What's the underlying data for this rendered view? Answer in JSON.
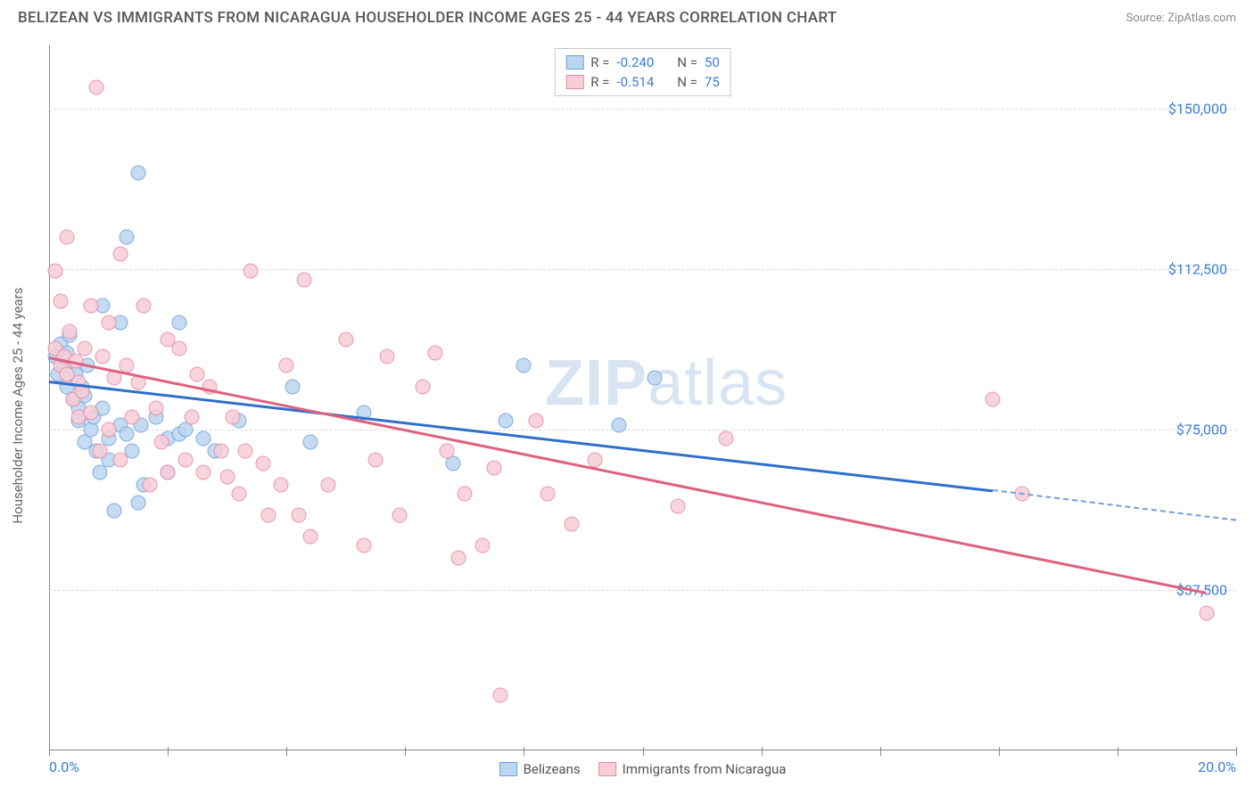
{
  "header": {
    "title": "BELIZEAN VS IMMIGRANTS FROM NICARAGUA HOUSEHOLDER INCOME AGES 25 - 44 YEARS CORRELATION CHART",
    "source": "Source: ZipAtlas.com"
  },
  "watermark": {
    "zip": "ZIP",
    "atlas": "atlas"
  },
  "chart": {
    "type": "scatter",
    "ylabel": "Householder Income Ages 25 - 44 years",
    "xlim": [
      0,
      20
    ],
    "ylim": [
      0,
      165000
    ],
    "yticks": [
      {
        "v": 37500,
        "label": "$37,500"
      },
      {
        "v": 75000,
        "label": "$75,000"
      },
      {
        "v": 112500,
        "label": "$112,500"
      },
      {
        "v": 150000,
        "label": "$150,000"
      }
    ],
    "xticks": [
      0,
      2,
      4,
      6,
      8,
      10,
      12,
      14,
      16,
      18,
      20
    ],
    "xtick_labels": {
      "left": "0.0%",
      "right": "20.0%"
    },
    "grid_color": "#d8d8d8",
    "axis_color": "#888888",
    "background_color": "#ffffff",
    "series": [
      {
        "name": "Belizeans",
        "color_fill": "#bcd5f0",
        "color_stroke": "#6ea0db",
        "marker_size": 17,
        "R": "-0.240",
        "N": "50",
        "trend": {
          "x1": 0,
          "y1": 86500,
          "x2": 15.9,
          "y2": 61000,
          "color": "#2f6fc9"
        },
        "trend_dash": {
          "x1": 15.9,
          "y1": 61000,
          "x2": 20,
          "y2": 54000,
          "color": "#6ea0db"
        },
        "points": [
          [
            0.1,
            92000
          ],
          [
            0.15,
            88000
          ],
          [
            0.2,
            95000
          ],
          [
            0.25,
            90000
          ],
          [
            0.3,
            85000
          ],
          [
            0.3,
            93000
          ],
          [
            0.35,
            97000
          ],
          [
            0.4,
            82000
          ],
          [
            0.45,
            88000
          ],
          [
            0.5,
            80000
          ],
          [
            0.5,
            77000
          ],
          [
            0.55,
            85000
          ],
          [
            0.6,
            83000
          ],
          [
            0.6,
            72000
          ],
          [
            0.65,
            90000
          ],
          [
            0.7,
            75000
          ],
          [
            0.75,
            78000
          ],
          [
            0.8,
            70000
          ],
          [
            0.85,
            65000
          ],
          [
            0.9,
            104000
          ],
          [
            0.9,
            80000
          ],
          [
            1.0,
            73000
          ],
          [
            1.0,
            68000
          ],
          [
            1.2,
            100000
          ],
          [
            1.2,
            76000
          ],
          [
            1.3,
            74000
          ],
          [
            1.3,
            120000
          ],
          [
            1.5,
            135000
          ],
          [
            1.5,
            58000
          ],
          [
            1.55,
            76000
          ],
          [
            1.6,
            62000
          ],
          [
            1.8,
            78000
          ],
          [
            2.0,
            73000
          ],
          [
            2.0,
            65000
          ],
          [
            2.2,
            100000
          ],
          [
            2.2,
            74000
          ],
          [
            2.3,
            75000
          ],
          [
            2.6,
            73000
          ],
          [
            2.8,
            70000
          ],
          [
            3.2,
            77000
          ],
          [
            4.1,
            85000
          ],
          [
            4.4,
            72000
          ],
          [
            5.3,
            79000
          ],
          [
            6.8,
            67000
          ],
          [
            7.7,
            77000
          ],
          [
            8.0,
            90000
          ],
          [
            9.6,
            76000
          ],
          [
            10.2,
            87000
          ],
          [
            1.1,
            56000
          ],
          [
            1.4,
            70000
          ]
        ]
      },
      {
        "name": "Immigrants from Nicaragua",
        "color_fill": "#f7cdd8",
        "color_stroke": "#e888a3",
        "marker_size": 17,
        "R": "-0.514",
        "N": "75",
        "trend": {
          "x1": 0,
          "y1": 92000,
          "x2": 19.5,
          "y2": 37000,
          "color": "#e0607f"
        },
        "points": [
          [
            0.1,
            94000
          ],
          [
            0.1,
            112000
          ],
          [
            0.2,
            90000
          ],
          [
            0.2,
            105000
          ],
          [
            0.25,
            92000
          ],
          [
            0.3,
            88000
          ],
          [
            0.3,
            120000
          ],
          [
            0.35,
            98000
          ],
          [
            0.4,
            82000
          ],
          [
            0.45,
            91000
          ],
          [
            0.5,
            78000
          ],
          [
            0.5,
            86000
          ],
          [
            0.55,
            84000
          ],
          [
            0.6,
            94000
          ],
          [
            0.7,
            104000
          ],
          [
            0.7,
            79000
          ],
          [
            0.8,
            155000
          ],
          [
            0.85,
            70000
          ],
          [
            0.9,
            92000
          ],
          [
            1.0,
            100000
          ],
          [
            1.0,
            75000
          ],
          [
            1.1,
            87000
          ],
          [
            1.2,
            68000
          ],
          [
            1.2,
            116000
          ],
          [
            1.3,
            90000
          ],
          [
            1.4,
            78000
          ],
          [
            1.5,
            86000
          ],
          [
            1.6,
            104000
          ],
          [
            1.7,
            62000
          ],
          [
            1.8,
            80000
          ],
          [
            1.9,
            72000
          ],
          [
            2.0,
            96000
          ],
          [
            2.0,
            65000
          ],
          [
            2.2,
            94000
          ],
          [
            2.3,
            68000
          ],
          [
            2.4,
            78000
          ],
          [
            2.5,
            88000
          ],
          [
            2.6,
            65000
          ],
          [
            2.7,
            85000
          ],
          [
            2.9,
            70000
          ],
          [
            3.0,
            64000
          ],
          [
            3.1,
            78000
          ],
          [
            3.2,
            60000
          ],
          [
            3.3,
            70000
          ],
          [
            3.4,
            112000
          ],
          [
            3.6,
            67000
          ],
          [
            3.7,
            55000
          ],
          [
            3.9,
            62000
          ],
          [
            4.0,
            90000
          ],
          [
            4.2,
            55000
          ],
          [
            4.3,
            110000
          ],
          [
            4.4,
            50000
          ],
          [
            4.7,
            62000
          ],
          [
            5.0,
            96000
          ],
          [
            5.3,
            48000
          ],
          [
            5.5,
            68000
          ],
          [
            5.7,
            92000
          ],
          [
            5.9,
            55000
          ],
          [
            6.3,
            85000
          ],
          [
            6.5,
            93000
          ],
          [
            6.7,
            70000
          ],
          [
            7.0,
            60000
          ],
          [
            7.3,
            48000
          ],
          [
            7.5,
            66000
          ],
          [
            7.6,
            13000
          ],
          [
            8.2,
            77000
          ],
          [
            8.4,
            60000
          ],
          [
            8.8,
            53000
          ],
          [
            9.2,
            68000
          ],
          [
            10.6,
            57000
          ],
          [
            11.4,
            73000
          ],
          [
            15.9,
            82000
          ],
          [
            16.4,
            60000
          ],
          [
            19.5,
            32000
          ],
          [
            6.9,
            45000
          ]
        ]
      }
    ]
  },
  "legend_bottom": [
    {
      "label": "Belizeans",
      "fill": "#bcd5f0",
      "stroke": "#6ea0db"
    },
    {
      "label": "Immigrants from Nicaragua",
      "fill": "#f7cdd8",
      "stroke": "#e888a3"
    }
  ]
}
